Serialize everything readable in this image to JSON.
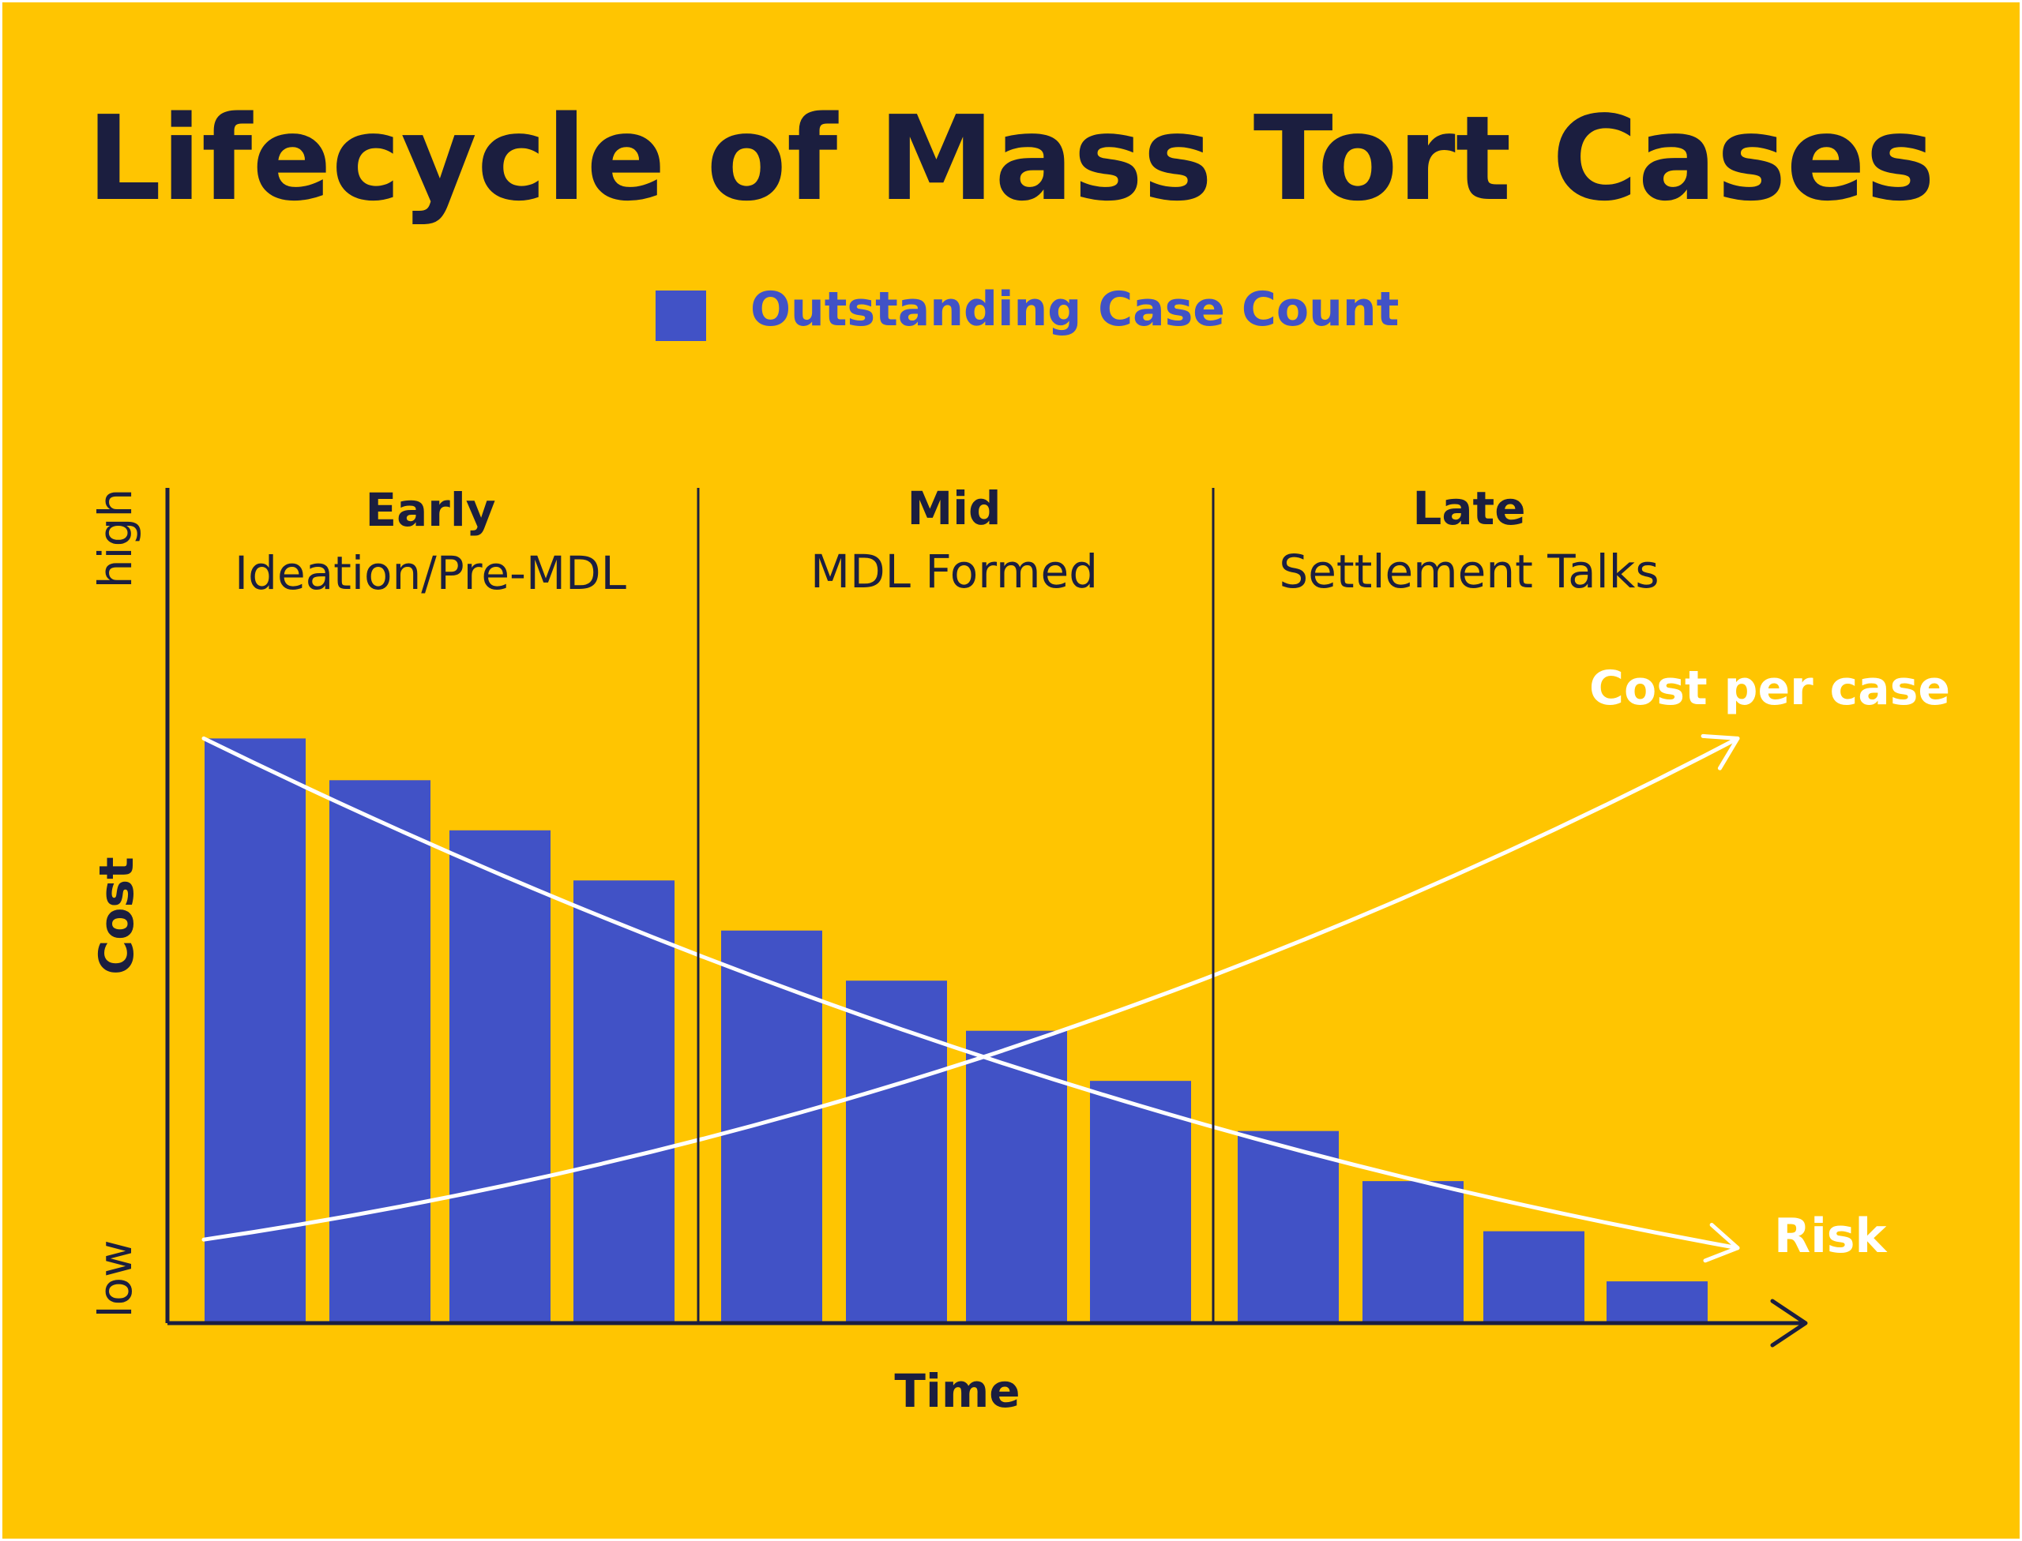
{
  "colors": {
    "background": "#FFC501",
    "ink": "#1B1E3F",
    "bar": "#4152C6",
    "curve": "#FFFFFF",
    "border": "#FFFFFF"
  },
  "chart_data": {
    "type": "bar",
    "title": "Lifecycle of Mass Tort Cases",
    "legend": {
      "placement": "top-center",
      "items": [
        {
          "label": "Outstanding Case Count",
          "color": "#4152C6"
        }
      ]
    },
    "xlabel": "Time",
    "ylabel": "Cost",
    "y_tick_labels": {
      "high": "high",
      "low": "low"
    },
    "ylim": [
      0,
      10
    ],
    "grid": false,
    "phases": [
      {
        "name": "Early",
        "description": "Ideation/Pre-MDL",
        "bars": [
          7.0,
          6.5,
          5.9,
          5.3
        ]
      },
      {
        "name": "Mid",
        "description": "MDL Formed",
        "bars": [
          4.7,
          4.1,
          3.5,
          2.9
        ]
      },
      {
        "name": "Late",
        "description": "Settlement Talks",
        "bars": [
          2.3,
          1.7,
          1.1,
          0.5
        ]
      }
    ],
    "series": [
      {
        "name": "Outstanding Case Count",
        "kind": "bar",
        "values": [
          7.0,
          6.5,
          5.9,
          5.3,
          4.7,
          4.1,
          3.5,
          2.9,
          2.3,
          1.7,
          1.1,
          0.5
        ]
      },
      {
        "name": "Cost per case",
        "kind": "curve",
        "trend": "increasing",
        "points": [
          [
            0,
            1.0
          ],
          [
            4,
            1.9
          ],
          [
            8,
            3.8
          ],
          [
            12,
            7.0
          ]
        ]
      },
      {
        "name": "Risk",
        "kind": "curve",
        "trend": "decreasing",
        "points": [
          [
            0,
            7.0
          ],
          [
            4,
            4.0
          ],
          [
            8,
            2.0
          ],
          [
            12,
            0.9
          ]
        ]
      }
    ]
  }
}
